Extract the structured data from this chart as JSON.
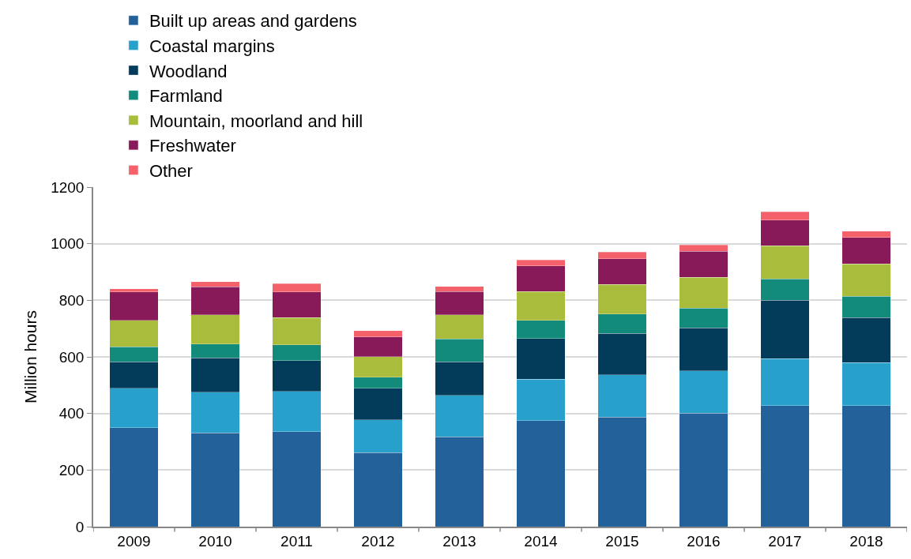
{
  "chart_data": {
    "type": "bar",
    "stacked": true,
    "ylabel": "Million hours",
    "categories": [
      "2009",
      "2010",
      "2011",
      "2012",
      "2013",
      "2014",
      "2015",
      "2016",
      "2017",
      "2018"
    ],
    "series": [
      {
        "name": "Built up areas and gardens",
        "color": "#22619a",
        "values": [
          350,
          332,
          335,
          262,
          318,
          374,
          387,
          401,
          427,
          427
        ]
      },
      {
        "name": "Coastal margins",
        "color": "#28a0cc",
        "values": [
          139,
          143,
          143,
          116,
          146,
          147,
          149,
          150,
          167,
          153
        ]
      },
      {
        "name": "Woodland",
        "color": "#033b5a",
        "values": [
          94,
          122,
          109,
          111,
          118,
          144,
          147,
          152,
          206,
          159
        ]
      },
      {
        "name": "Farmland",
        "color": "#138b7a",
        "values": [
          52,
          49,
          56,
          39,
          82,
          64,
          69,
          70,
          76,
          75
        ]
      },
      {
        "name": "Mountain, moorland and hill",
        "color": "#a9bc3b",
        "values": [
          94,
          102,
          96,
          73,
          85,
          102,
          104,
          108,
          117,
          115
        ]
      },
      {
        "name": "Freshwater",
        "color": "#881a59",
        "values": [
          100,
          99,
          91,
          69,
          82,
          90,
          91,
          92,
          91,
          93
        ]
      },
      {
        "name": "Other",
        "color": "#f5616b",
        "values": [
          12,
          19,
          29,
          23,
          18,
          22,
          23,
          23,
          29,
          23
        ]
      }
    ],
    "ylim": [
      0,
      1200
    ],
    "yticks": [
      0,
      200,
      400,
      600,
      800,
      1000,
      1200
    ],
    "grid": "y",
    "legend": "top"
  }
}
